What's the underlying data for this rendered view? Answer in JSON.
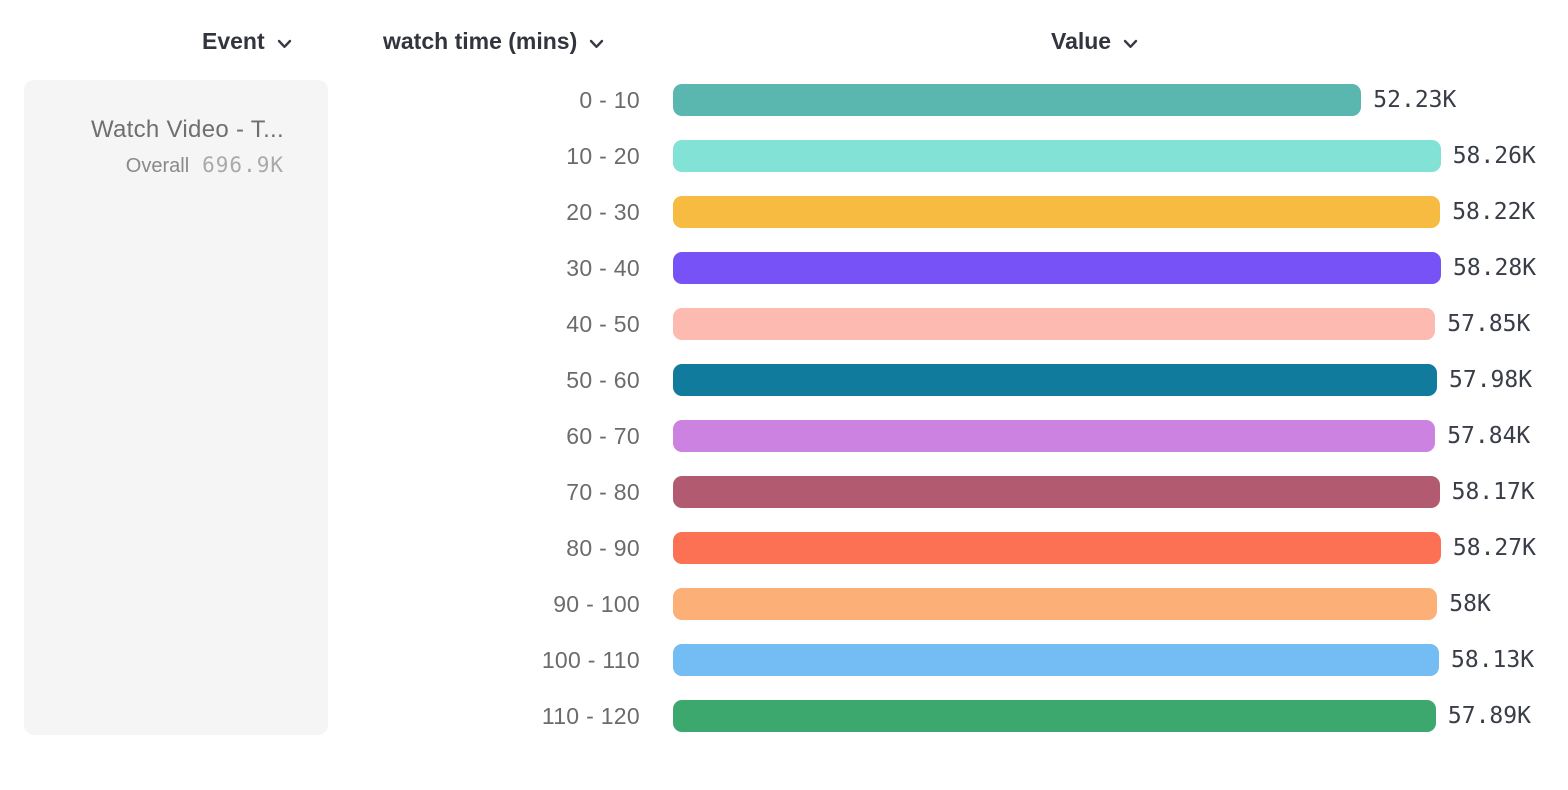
{
  "header": {
    "event_column": "Event",
    "breakdown_column": "watch time (mins)",
    "value_column": "Value"
  },
  "icons": {
    "chevron_down": "⌄"
  },
  "legend": {
    "event_name": "Watch Video - T...",
    "overall_label": "Overall",
    "overall_value": "696.9K"
  },
  "chart_data": {
    "type": "bar",
    "orientation": "horizontal",
    "title": "",
    "series_name": "Watch Video - T...",
    "xlabel": "Value",
    "ylabel": "watch time (mins)",
    "xlim": [
      0,
      58280
    ],
    "grid": false,
    "legend_position": "left",
    "categories": [
      "0 - 10",
      "10 - 20",
      "20 - 30",
      "30 - 40",
      "40 - 50",
      "50 - 60",
      "60 - 70",
      "70 - 80",
      "80 - 90",
      "90 - 100",
      "100 - 110",
      "110 - 120"
    ],
    "values": [
      52230,
      58260,
      58220,
      58280,
      57850,
      57980,
      57840,
      58170,
      58270,
      58000,
      58130,
      57890
    ],
    "value_labels": [
      "52.23K",
      "58.26K",
      "58.22K",
      "58.28K",
      "57.85K",
      "57.98K",
      "57.84K",
      "58.17K",
      "58.27K",
      "58K",
      "58.13K",
      "57.89K"
    ],
    "colors": [
      "#59b7af",
      "#83e2d6",
      "#f6bb40",
      "#7752f6",
      "#fcbab1",
      "#117b9e",
      "#cc82e1",
      "#b15a70",
      "#fc7054",
      "#fcb077",
      "#73bdf4",
      "#3ca86d"
    ],
    "overall_total": "696.9K"
  }
}
